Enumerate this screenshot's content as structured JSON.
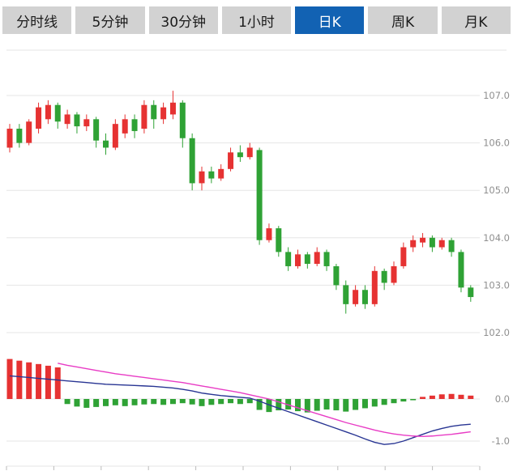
{
  "tabs": [
    {
      "label": "分时线",
      "active": false
    },
    {
      "label": "5分钟",
      "active": false
    },
    {
      "label": "30分钟",
      "active": false
    },
    {
      "label": "1小时",
      "active": false
    },
    {
      "label": "日K",
      "active": true
    },
    {
      "label": "周K",
      "active": false
    },
    {
      "label": "月K",
      "active": false
    }
  ],
  "colors": {
    "up": "#e63232",
    "down": "#2fa235",
    "active_tab_bg": "#1262b3",
    "tab_bg": "#d2d2d2",
    "dif_line": "#283593",
    "dea_line": "#e83cc5",
    "grid": "#e6e6e6",
    "axis_text": "#8f8f8f",
    "tick": "#bbbbbb"
  },
  "chart_data": {
    "type": "candlestick",
    "title": "",
    "legend_position": "none",
    "grid": true,
    "panels": [
      {
        "name": "price",
        "type": "candlestick",
        "ylabel": "",
        "y_ticks": [
          107.0,
          106.0,
          105.0,
          104.0,
          103.0,
          102.0
        ],
        "ylim": [
          101.9,
          107.3
        ],
        "candles_ohlc": [
          [
            105.9,
            106.4,
            105.8,
            106.3
          ],
          [
            106.3,
            106.4,
            105.9,
            106.0
          ],
          [
            106.0,
            106.5,
            105.95,
            106.45
          ],
          [
            106.3,
            106.85,
            106.2,
            106.75
          ],
          [
            106.5,
            106.9,
            106.4,
            106.8
          ],
          [
            106.8,
            106.85,
            106.3,
            106.45
          ],
          [
            106.4,
            106.7,
            106.3,
            106.6
          ],
          [
            106.6,
            106.65,
            106.2,
            106.35
          ],
          [
            106.35,
            106.6,
            106.25,
            106.5
          ],
          [
            106.5,
            106.55,
            105.9,
            106.05
          ],
          [
            106.05,
            106.2,
            105.75,
            105.9
          ],
          [
            105.9,
            106.5,
            105.85,
            106.4
          ],
          [
            106.2,
            106.6,
            106.1,
            106.5
          ],
          [
            106.5,
            106.6,
            106.1,
            106.25
          ],
          [
            106.3,
            106.9,
            106.2,
            106.8
          ],
          [
            106.8,
            106.9,
            106.3,
            106.5
          ],
          [
            106.5,
            106.85,
            106.4,
            106.75
          ],
          [
            106.6,
            107.1,
            106.5,
            106.85
          ],
          [
            106.85,
            106.9,
            105.9,
            106.1
          ],
          [
            106.1,
            106.2,
            105.0,
            105.15
          ],
          [
            105.15,
            105.5,
            105.0,
            105.4
          ],
          [
            105.4,
            105.5,
            105.15,
            105.25
          ],
          [
            105.25,
            105.55,
            105.2,
            105.45
          ],
          [
            105.45,
            105.9,
            105.4,
            105.8
          ],
          [
            105.8,
            105.95,
            105.6,
            105.7
          ],
          [
            105.7,
            106.0,
            105.65,
            105.9
          ],
          [
            105.85,
            105.9,
            103.85,
            103.95
          ],
          [
            103.95,
            104.3,
            103.9,
            104.2
          ],
          [
            104.2,
            104.25,
            103.6,
            103.7
          ],
          [
            103.7,
            103.8,
            103.3,
            103.4
          ],
          [
            103.4,
            103.75,
            103.35,
            103.65
          ],
          [
            103.65,
            103.7,
            103.35,
            103.45
          ],
          [
            103.45,
            103.8,
            103.4,
            103.7
          ],
          [
            103.7,
            103.75,
            103.3,
            103.4
          ],
          [
            103.4,
            103.45,
            102.9,
            103.0
          ],
          [
            103.0,
            103.1,
            102.4,
            102.6
          ],
          [
            102.6,
            103.0,
            102.55,
            102.9
          ],
          [
            102.9,
            103.0,
            102.5,
            102.6
          ],
          [
            102.6,
            103.4,
            102.55,
            103.3
          ],
          [
            103.3,
            103.35,
            102.9,
            103.05
          ],
          [
            103.05,
            103.5,
            103.0,
            103.4
          ],
          [
            103.4,
            103.9,
            103.35,
            103.8
          ],
          [
            103.8,
            104.05,
            103.7,
            103.95
          ],
          [
            103.9,
            104.1,
            103.8,
            104.0
          ],
          [
            104.0,
            104.05,
            103.7,
            103.8
          ],
          [
            103.8,
            104.0,
            103.75,
            103.95
          ],
          [
            103.95,
            104.0,
            103.6,
            103.7
          ],
          [
            103.7,
            103.75,
            102.85,
            102.95
          ],
          [
            102.95,
            103.0,
            102.65,
            102.75
          ]
        ]
      },
      {
        "name": "macd",
        "type": "bar",
        "ylabel": "",
        "y_ticks": [
          0.0,
          -1.0
        ],
        "ylim": [
          -1.2,
          1.1
        ],
        "histogram": [
          0.95,
          0.91,
          0.87,
          0.83,
          0.79,
          0.75,
          -0.12,
          -0.18,
          -0.21,
          -0.19,
          -0.17,
          -0.15,
          -0.17,
          -0.15,
          -0.13,
          -0.12,
          -0.14,
          -0.12,
          -0.1,
          -0.13,
          -0.17,
          -0.14,
          -0.12,
          -0.1,
          -0.12,
          -0.1,
          -0.26,
          -0.31,
          -0.27,
          -0.25,
          -0.29,
          -0.32,
          -0.28,
          -0.25,
          -0.27,
          -0.3,
          -0.26,
          -0.22,
          -0.18,
          -0.14,
          -0.1,
          -0.06,
          -0.03,
          0.05,
          0.08,
          0.11,
          0.12,
          0.1,
          0.08
        ],
        "dif": [
          0.55,
          0.53,
          0.51,
          0.49,
          0.47,
          0.45,
          0.43,
          0.41,
          0.39,
          0.37,
          0.35,
          0.34,
          0.33,
          0.32,
          0.31,
          0.3,
          0.28,
          0.26,
          0.23,
          0.19,
          0.14,
          0.11,
          0.08,
          0.06,
          0.04,
          0.02,
          -0.05,
          -0.14,
          -0.22,
          -0.3,
          -0.38,
          -0.46,
          -0.54,
          -0.62,
          -0.7,
          -0.78,
          -0.86,
          -0.95,
          -1.03,
          -1.08,
          -1.06,
          -1.0,
          -0.92,
          -0.84,
          -0.76,
          -0.7,
          -0.65,
          -0.62,
          -0.6
        ],
        "dea": [
          null,
          null,
          null,
          null,
          null,
          0.85,
          0.8,
          0.76,
          0.72,
          0.68,
          0.64,
          0.6,
          0.57,
          0.54,
          0.51,
          0.48,
          0.45,
          0.42,
          0.39,
          0.35,
          0.31,
          0.27,
          0.23,
          0.19,
          0.15,
          0.1,
          0.05,
          0.0,
          -0.07,
          -0.14,
          -0.21,
          -0.28,
          -0.35,
          -0.42,
          -0.49,
          -0.56,
          -0.62,
          -0.68,
          -0.74,
          -0.79,
          -0.83,
          -0.86,
          -0.88,
          -0.89,
          -0.88,
          -0.86,
          -0.84,
          -0.81,
          -0.78
        ]
      }
    ]
  }
}
